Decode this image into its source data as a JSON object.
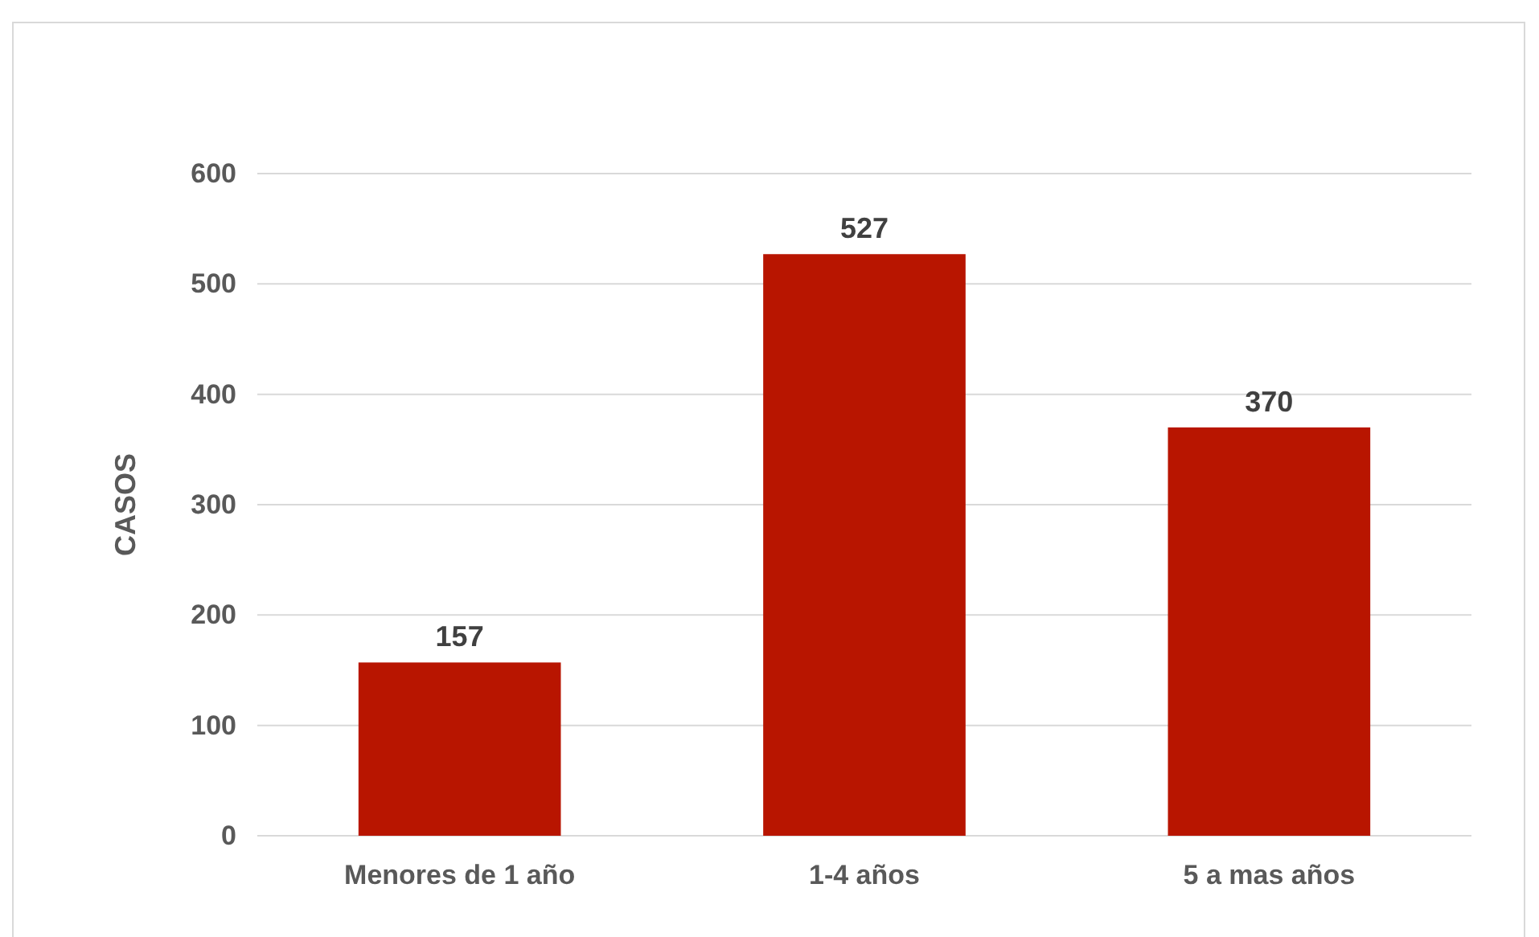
{
  "chart_data": {
    "type": "bar",
    "ylabel": "CASOS",
    "categories": [
      "Menores de 1 año",
      "1-4 años",
      "5 a mas años"
    ],
    "values": [
      157,
      527,
      370
    ],
    "color": "#b81500",
    "ylim": [
      0,
      600
    ],
    "yticks": [
      0,
      100,
      200,
      300,
      400,
      500,
      600
    ],
    "grid": "y",
    "data_labels": true
  }
}
